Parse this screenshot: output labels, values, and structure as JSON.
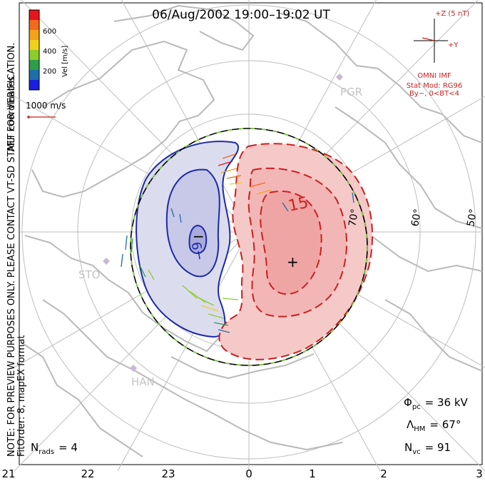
{
  "title": "06/Aug/2002  19:00–19:02  UT",
  "coordinates_label": "MLT coordinates",
  "velocity_scale": {
    "label": "Vel [m/s]",
    "ticks": [
      "600",
      "400",
      "200"
    ],
    "colors": [
      "#e8141c",
      "#f26a1b",
      "#f5a21b",
      "#eed21c",
      "#8ccd2c",
      "#2f9d4a",
      "#1f6fa8",
      "#1b1fe0"
    ]
  },
  "reference_vector_label": "1000 m/s",
  "notice": "NOTE: FOR PREVIEW PURPOSES ONLY. PLEASE CONTACT VT-SD STAFF FOR VERIFICATION.",
  "fit_order": "FitOrder: 8,  mapEX format",
  "imf": {
    "z_label": "+Z (5 nT)",
    "y_label": "+Y",
    "source": "OMNI IMF",
    "model": "Stat Mod: RG96",
    "condition": "By−, 0<BT<4"
  },
  "stations": [
    "PGR",
    "STO",
    "HAN"
  ],
  "latitude_labels": [
    "70°",
    "60°",
    "50°"
  ],
  "contour_labels": {
    "negative": "−9",
    "positive": "15"
  },
  "extremum_markers": {
    "negative": "−",
    "positive": "+"
  },
  "stats": {
    "pc_symbol": "Φ",
    "pc_sub": "pc",
    "pc_value": "=  36 kV",
    "hm_symbol": "Λ",
    "hm_sub": "HM",
    "hm_value": "=  67°",
    "vc_symbol": "N",
    "vc_sub": "vc",
    "vc_value": "=  91",
    "rads_symbol": "N",
    "rads_sub": "rads",
    "rads_value": "=  4"
  },
  "mlt_labels": [
    "21",
    "22",
    "23",
    "0",
    "1",
    "2",
    "3"
  ],
  "colors": {
    "positive_fill": "#f6c9c9",
    "positive_core": "#ee9a9a",
    "positive_line": "#cc1f1f",
    "negative_fill": "#dcdcef",
    "negative_core": "#b9b9e2",
    "negative_line": "#1c2aa8",
    "annotation_red": "#cc1f1f",
    "grid": "#bdbdbd",
    "coast": "#b9b9b9",
    "boundary_dash": "#7ccc3a"
  }
}
